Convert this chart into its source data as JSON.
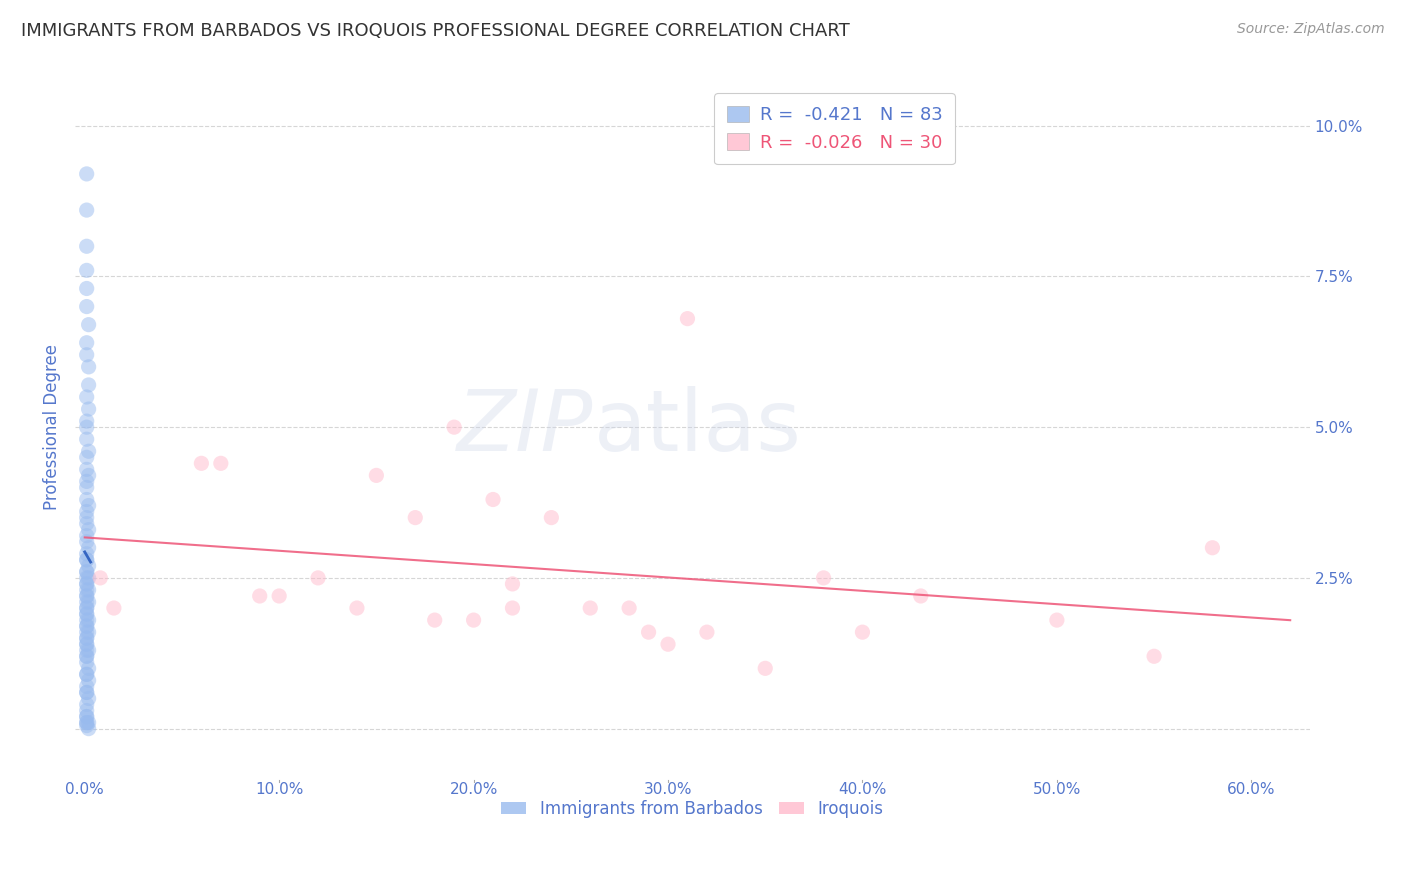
{
  "title": "IMMIGRANTS FROM BARBADOS VS IROQUOIS PROFESSIONAL DEGREE CORRELATION CHART",
  "source": "Source: ZipAtlas.com",
  "ylabel_label": "Professional Degree",
  "x_ticks": [
    0.0,
    0.1,
    0.2,
    0.3,
    0.4,
    0.5,
    0.6
  ],
  "x_tick_labels": [
    "0.0%",
    "10.0%",
    "20.0%",
    "30.0%",
    "40.0%",
    "50.0%",
    "60.0%"
  ],
  "y_ticks": [
    0.0,
    0.025,
    0.05,
    0.075,
    0.1
  ],
  "y_tick_labels": [
    "",
    "2.5%",
    "5.0%",
    "7.5%",
    "10.0%"
  ],
  "xlim": [
    -0.005,
    0.63
  ],
  "ylim": [
    -0.008,
    0.108
  ],
  "background_color": "#ffffff",
  "grid_color": "#cccccc",
  "watermark": "ZIPatlas",
  "legend_r1": "R = ",
  "legend_r1_val": "-0.421",
  "legend_n1": "N = ",
  "legend_n1_val": "83",
  "legend_r2": "R = ",
  "legend_r2_val": "-0.026",
  "legend_n2": "N = ",
  "legend_n2_val": "30",
  "barbados_x": [
    0.001,
    0.001,
    0.001,
    0.001,
    0.001,
    0.001,
    0.002,
    0.001,
    0.001,
    0.002,
    0.002,
    0.001,
    0.002,
    0.001,
    0.001,
    0.001,
    0.002,
    0.001,
    0.001,
    0.002,
    0.001,
    0.001,
    0.001,
    0.002,
    0.001,
    0.001,
    0.001,
    0.002,
    0.001,
    0.001,
    0.002,
    0.001,
    0.001,
    0.001,
    0.002,
    0.001,
    0.001,
    0.001,
    0.002,
    0.001,
    0.001,
    0.002,
    0.001,
    0.001,
    0.001,
    0.001,
    0.002,
    0.001,
    0.001,
    0.001,
    0.001,
    0.001,
    0.002,
    0.001,
    0.001,
    0.001,
    0.002,
    0.001,
    0.001,
    0.001,
    0.001,
    0.002,
    0.001,
    0.001,
    0.001,
    0.001,
    0.002,
    0.001,
    0.001,
    0.002,
    0.001,
    0.001,
    0.001,
    0.002,
    0.001,
    0.001,
    0.001,
    0.001,
    0.002,
    0.001,
    0.001,
    0.001,
    0.002
  ],
  "barbados_y": [
    0.092,
    0.086,
    0.08,
    0.076,
    0.073,
    0.07,
    0.067,
    0.064,
    0.062,
    0.06,
    0.057,
    0.055,
    0.053,
    0.051,
    0.05,
    0.048,
    0.046,
    0.045,
    0.043,
    0.042,
    0.041,
    0.04,
    0.038,
    0.037,
    0.036,
    0.035,
    0.034,
    0.033,
    0.032,
    0.031,
    0.03,
    0.029,
    0.028,
    0.028,
    0.027,
    0.026,
    0.026,
    0.025,
    0.025,
    0.024,
    0.024,
    0.023,
    0.023,
    0.022,
    0.022,
    0.021,
    0.021,
    0.02,
    0.02,
    0.019,
    0.019,
    0.018,
    0.018,
    0.017,
    0.017,
    0.016,
    0.016,
    0.015,
    0.015,
    0.014,
    0.014,
    0.013,
    0.013,
    0.012,
    0.012,
    0.011,
    0.01,
    0.009,
    0.009,
    0.008,
    0.007,
    0.006,
    0.006,
    0.005,
    0.004,
    0.003,
    0.002,
    0.002,
    0.001,
    0.001,
    0.001,
    0.0005,
    0.0
  ],
  "iroquois_x": [
    0.008,
    0.015,
    0.06,
    0.07,
    0.09,
    0.1,
    0.12,
    0.14,
    0.15,
    0.17,
    0.18,
    0.19,
    0.2,
    0.21,
    0.22,
    0.22,
    0.24,
    0.26,
    0.28,
    0.29,
    0.3,
    0.31,
    0.32,
    0.35,
    0.38,
    0.4,
    0.43,
    0.5,
    0.55,
    0.58
  ],
  "iroquois_y": [
    0.025,
    0.02,
    0.044,
    0.044,
    0.022,
    0.022,
    0.025,
    0.02,
    0.042,
    0.035,
    0.018,
    0.05,
    0.018,
    0.038,
    0.02,
    0.024,
    0.035,
    0.02,
    0.02,
    0.016,
    0.014,
    0.068,
    0.016,
    0.01,
    0.025,
    0.016,
    0.022,
    0.018,
    0.012,
    0.03
  ],
  "blue_dot_color": "#99bbee",
  "pink_dot_color": "#ffbbcc",
  "blue_line_color": "#2255bb",
  "pink_line_color": "#ee5577",
  "dot_size": 120,
  "dot_alpha": 0.5,
  "line_alpha": 0.85,
  "axis_color": "#5577cc",
  "watermark_color": "#ccd5e8",
  "watermark_alpha": 0.35,
  "title_fontsize": 13,
  "source_fontsize": 10,
  "tick_fontsize": 11,
  "ylabel_fontsize": 12
}
